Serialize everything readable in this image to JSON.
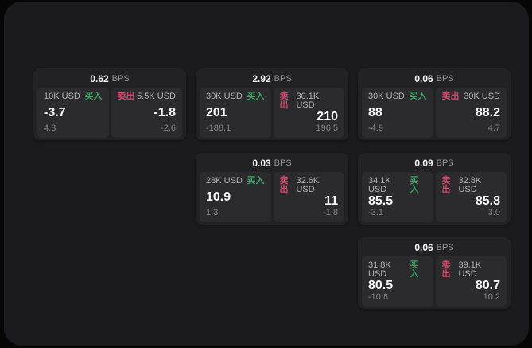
{
  "labels": {
    "bps": "BPS",
    "buy": "买入",
    "sell": "卖出"
  },
  "colors": {
    "page_bg": "#060607",
    "window_bg": "#1b1b1d",
    "card_bg": "#222225",
    "panel_bg": "#2b2b2e",
    "buy_green": "#3aa263",
    "sell_red": "#cf4a6b",
    "value_white": "#f7f7f9",
    "muted_gray": "#85858a"
  },
  "cards": [
    {
      "bps": "0.62",
      "buy": {
        "amount": "10K USD",
        "value": "-3.7",
        "sub": "4.3"
      },
      "sell": {
        "amount": "5.5K USD",
        "value": "-1.8",
        "sub": "-2.6"
      }
    },
    {
      "bps": "2.92",
      "buy": {
        "amount": "30K USD",
        "value": "201",
        "sub": "-188.1"
      },
      "sell": {
        "amount": "30.1K USD",
        "value": "210",
        "sub": "196.5"
      }
    },
    {
      "bps": "0.06",
      "buy": {
        "amount": "30K USD",
        "value": "88",
        "sub": "-4.9"
      },
      "sell": {
        "amount": "30K USD",
        "value": "88.2",
        "sub": "4.7"
      }
    },
    {
      "bps": "0.03",
      "buy": {
        "amount": "28K USD",
        "value": "10.9",
        "sub": "1.3"
      },
      "sell": {
        "amount": "32.6K USD",
        "value": "11",
        "sub": "-1.8"
      }
    },
    {
      "bps": "0.09",
      "buy": {
        "amount": "34.1K USD",
        "value": "85.5",
        "sub": "-3.1"
      },
      "sell": {
        "amount": "32.8K USD",
        "value": "85.8",
        "sub": "3.0"
      }
    },
    {
      "bps": "0.06",
      "buy": {
        "amount": "31.8K USD",
        "value": "80.5",
        "sub": "-10.8"
      },
      "sell": {
        "amount": "39.1K USD",
        "value": "80.7",
        "sub": "10.2"
      }
    }
  ]
}
